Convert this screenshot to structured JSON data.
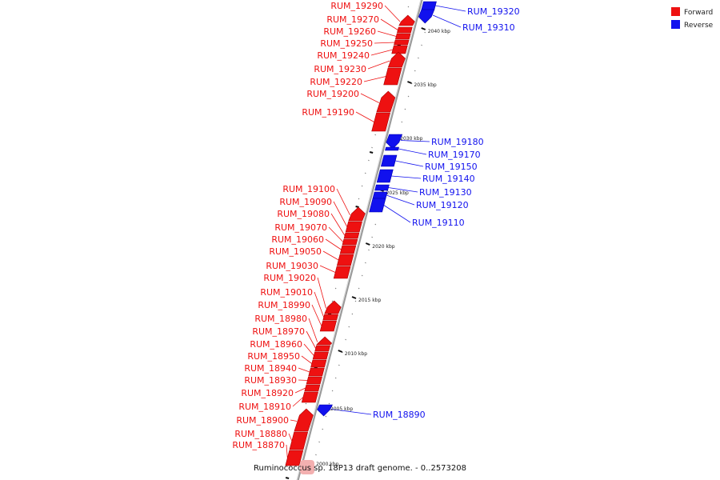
{
  "colors": {
    "forward": "#ee1111",
    "reverse": "#1111ee",
    "backbone": "#999999",
    "forward_dark": "#aa0000",
    "reverse_dark": "#0000aa"
  },
  "legend": [
    {
      "label": "Forward",
      "color": "#ee1111"
    },
    {
      "label": "Reverse",
      "color": "#1111ee"
    }
  ],
  "caption": "Ruminococcus sp. 18P13 draft genome. - 0..2573208",
  "ticks": [
    "2040 kbp",
    "2035 kbp",
    "2030 kbp",
    "2025 kbp",
    "2020 kbp",
    "2015 kbp",
    "2010 kbp",
    "2005 kbp",
    "2000 kbp"
  ],
  "forward_genes": [
    "RUM_19290",
    "RUM_19270",
    "RUM_19260",
    "RUM_19250",
    "RUM_19240",
    "RUM_19230",
    "RUM_19220",
    "RUM_19200",
    "RUM_19190",
    "RUM_19100",
    "RUM_19090",
    "RUM_19080",
    "RUM_19070",
    "RUM_19060",
    "RUM_19050",
    "RUM_19030",
    "RUM_19020",
    "RUM_19010",
    "RUM_18990",
    "RUM_18980",
    "RUM_18970",
    "RUM_18960",
    "RUM_18950",
    "RUM_18940",
    "RUM_18930",
    "RUM_18920",
    "RUM_18910",
    "RUM_18900",
    "RUM_18880",
    "RUM_18870"
  ],
  "reverse_genes": [
    "RUM_19320",
    "RUM_19310",
    "RUM_19180",
    "RUM_19170",
    "RUM_19150",
    "RUM_19140",
    "RUM_19130",
    "RUM_19120",
    "RUM_19110",
    "RUM_18890"
  ]
}
